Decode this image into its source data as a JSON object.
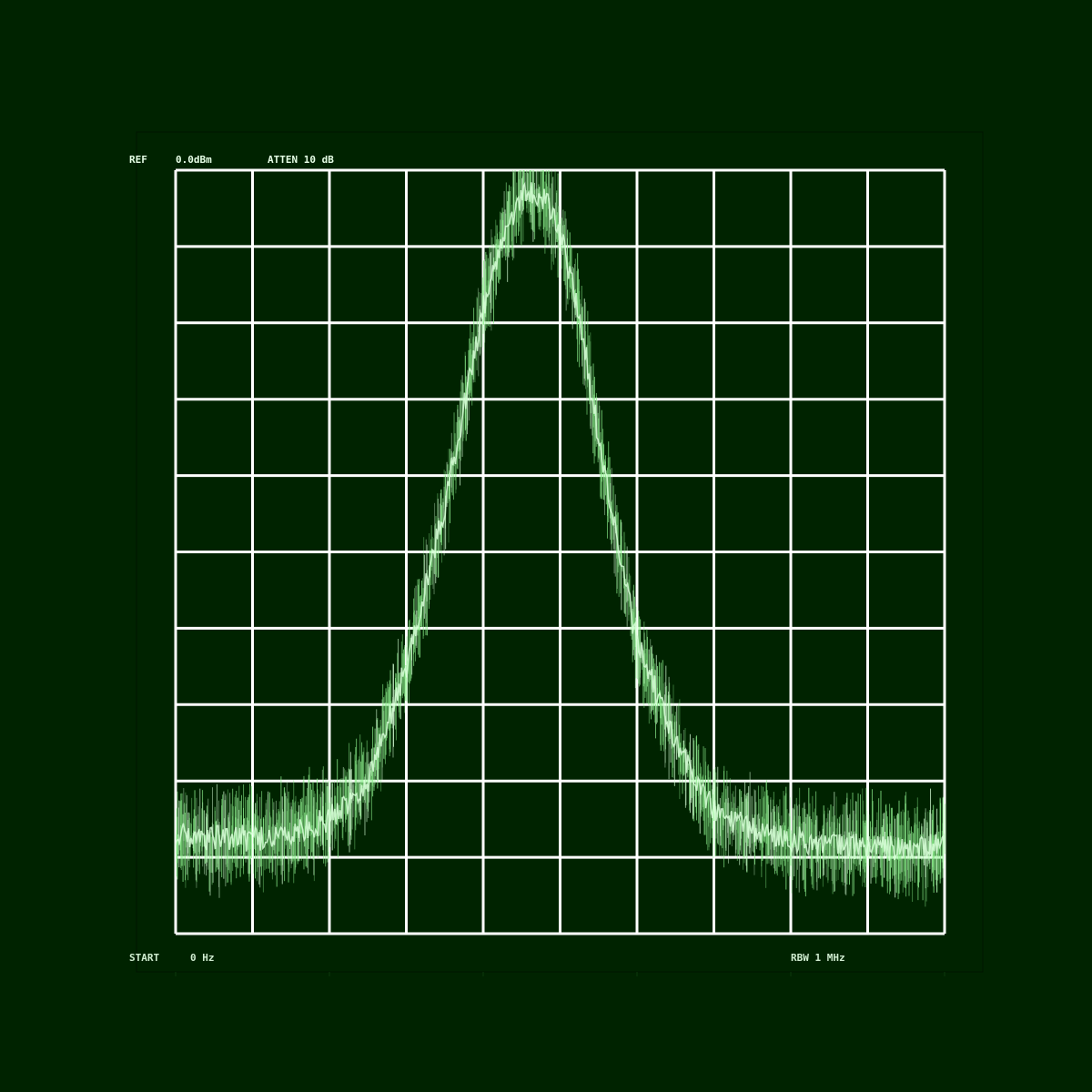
{
  "header": {
    "ref_label": "REF",
    "ref_value": "0.0dBm",
    "atten": "ATTEN 10 dB"
  },
  "footer": {
    "start_label": "START",
    "start_value": "0 Hz",
    "rbw": "RBW 1 MHz"
  },
  "colors": {
    "background": "#002300",
    "grid": "#ffffff",
    "trace": "#8ef08e",
    "trace_bright": "#d8ffd8"
  },
  "chart_data": {
    "type": "line",
    "title": "",
    "xlabel": "",
    "ylabel": "",
    "grid": true,
    "x_divisions": 10,
    "y_divisions": 10,
    "xlim": [
      0,
      10
    ],
    "ylim": [
      0,
      10
    ],
    "series": [
      {
        "x": [
          0,
          0.5,
          1,
          1.5,
          2,
          2.5,
          3,
          3.5,
          4,
          4.25,
          4.5,
          4.75,
          5,
          5.25,
          5.5,
          5.75,
          6,
          6.5,
          7,
          7.5,
          8,
          8.5,
          9,
          9.5,
          10
        ],
        "y": [
          1.3,
          1.25,
          1.25,
          1.3,
          1.5,
          2.0,
          3.5,
          5.6,
          8.2,
          9.1,
          9.7,
          9.7,
          9.2,
          8.1,
          6.5,
          5.1,
          3.8,
          2.5,
          1.6,
          1.35,
          1.25,
          1.15,
          1.15,
          1.1,
          1.15
        ]
      }
    ]
  }
}
